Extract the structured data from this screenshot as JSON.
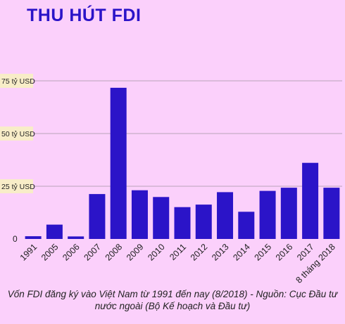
{
  "title": "THU HÚT FDI",
  "caption": "Vốn FDI đăng ký vào Việt Nam từ 1991 đến nay (8/2018) - Nguồn: Cục Đầu tư nước ngoài (Bộ Kế hoạch và Đầu tư)",
  "colors": {
    "bar": "#2b14c8",
    "background": "#fbd0fb",
    "title": "#2b14c8",
    "grid": "#b9a3b9",
    "label_box": "#f8edc8"
  },
  "chart_data": {
    "type": "bar",
    "categories": [
      "1991",
      "2005",
      "2006",
      "2007",
      "2008",
      "2009",
      "2010",
      "2011",
      "2012",
      "2013",
      "2014",
      "2015",
      "2016",
      "2017",
      "8 tháng 2018"
    ],
    "values": [
      1.3,
      6.8,
      1.2,
      21.3,
      71.7,
      23.1,
      19.9,
      15.1,
      16.3,
      22.2,
      12.9,
      22.8,
      24.3,
      36.1,
      24.3
    ],
    "ylim": [
      0,
      100
    ],
    "yticks": [
      {
        "value": 0,
        "label": "0"
      },
      {
        "value": 25,
        "label": "25 tỷ USD"
      },
      {
        "value": 50,
        "label": "50 tỷ USD"
      },
      {
        "value": 75,
        "label": "75 tỷ USD"
      }
    ],
    "grid": true,
    "title": "THU HÚT FDI",
    "xlabel": "",
    "ylabel": ""
  }
}
